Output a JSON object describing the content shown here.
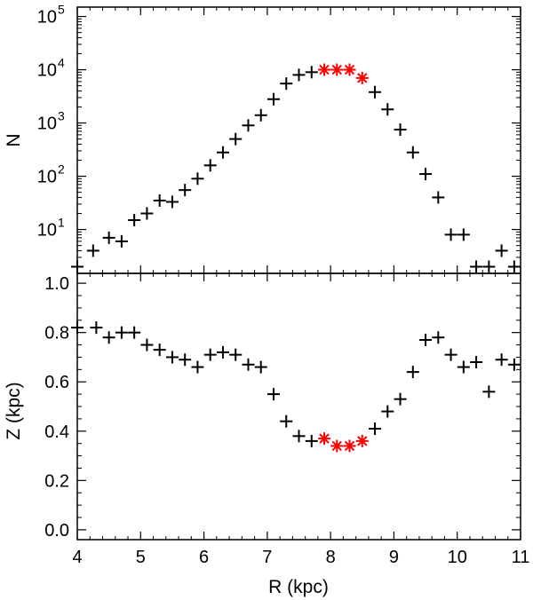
{
  "chart_data": [
    {
      "type": "scatter",
      "panel": "top",
      "ylabel": "N",
      "xlabel": "",
      "yscale": "log",
      "xlim": [
        4,
        11
      ],
      "ylim": [
        1.5,
        150000
      ],
      "yticks": [
        {
          "value": 10,
          "base": "10",
          "exp": "1"
        },
        {
          "value": 100,
          "base": "10",
          "exp": "2"
        },
        {
          "value": 1000,
          "base": "10",
          "exp": "3"
        },
        {
          "value": 10000,
          "base": "10",
          "exp": "4"
        },
        {
          "value": 100000,
          "base": "10",
          "exp": "5"
        }
      ],
      "grid": false,
      "series": [
        {
          "marker": "plus",
          "color": "#000000",
          "points": [
            [
              4.0,
              2
            ],
            [
              4.25,
              4
            ],
            [
              4.5,
              7
            ],
            [
              4.7,
              6
            ],
            [
              4.9,
              15
            ],
            [
              5.1,
              20
            ],
            [
              5.3,
              35
            ],
            [
              5.5,
              33
            ],
            [
              5.7,
              55
            ],
            [
              5.9,
              90
            ],
            [
              6.1,
              160
            ],
            [
              6.3,
              280
            ],
            [
              6.5,
              500
            ],
            [
              6.7,
              900
            ],
            [
              6.9,
              1400
            ],
            [
              7.1,
              2800
            ],
            [
              7.3,
              5500
            ],
            [
              7.5,
              8000
            ],
            [
              7.7,
              9000
            ],
            [
              8.7,
              3800
            ],
            [
              8.9,
              1800
            ],
            [
              9.1,
              750
            ],
            [
              9.3,
              280
            ],
            [
              9.5,
              110
            ],
            [
              9.7,
              40
            ],
            [
              9.9,
              8
            ],
            [
              10.1,
              8
            ],
            [
              10.3,
              2
            ],
            [
              10.5,
              2
            ],
            [
              10.7,
              4
            ],
            [
              10.9,
              2
            ]
          ]
        },
        {
          "marker": "asterisk",
          "color": "#ff0000",
          "points": [
            [
              7.9,
              10000
            ],
            [
              8.1,
              10000
            ],
            [
              8.3,
              10000
            ],
            [
              8.5,
              7000
            ]
          ]
        }
      ]
    },
    {
      "type": "scatter",
      "panel": "bottom",
      "ylabel": "Z (kpc)",
      "xlabel": "R (kpc)",
      "xlim": [
        4,
        11
      ],
      "ylim": [
        -0.04,
        1.04
      ],
      "xticks": [
        "4",
        "5",
        "6",
        "7",
        "8",
        "9",
        "10",
        "11"
      ],
      "yticks": [
        "0.0",
        "0.2",
        "0.4",
        "0.6",
        "0.8",
        "1.0"
      ],
      "grid": false,
      "series": [
        {
          "marker": "plus",
          "color": "#000000",
          "points": [
            [
              4.0,
              0.82
            ],
            [
              4.3,
              0.82
            ],
            [
              4.5,
              0.78
            ],
            [
              4.7,
              0.8
            ],
            [
              4.9,
              0.8
            ],
            [
              5.1,
              0.75
            ],
            [
              5.3,
              0.73
            ],
            [
              5.5,
              0.7
            ],
            [
              5.7,
              0.69
            ],
            [
              5.9,
              0.66
            ],
            [
              6.1,
              0.71
            ],
            [
              6.3,
              0.72
            ],
            [
              6.5,
              0.71
            ],
            [
              6.7,
              0.67
            ],
            [
              6.9,
              0.66
            ],
            [
              7.1,
              0.55
            ],
            [
              7.3,
              0.44
            ],
            [
              7.5,
              0.38
            ],
            [
              7.7,
              0.36
            ],
            [
              8.7,
              0.41
            ],
            [
              8.9,
              0.48
            ],
            [
              9.1,
              0.53
            ],
            [
              9.3,
              0.64
            ],
            [
              9.5,
              0.77
            ],
            [
              9.7,
              0.78
            ],
            [
              9.9,
              0.71
            ],
            [
              10.1,
              0.66
            ],
            [
              10.3,
              0.68
            ],
            [
              10.5,
              0.56
            ],
            [
              10.7,
              0.69
            ],
            [
              10.9,
              0.67
            ]
          ]
        },
        {
          "marker": "asterisk",
          "color": "#ff0000",
          "points": [
            [
              7.9,
              0.37
            ],
            [
              8.1,
              0.34
            ],
            [
              8.3,
              0.34
            ],
            [
              8.5,
              0.36
            ]
          ]
        }
      ]
    }
  ]
}
